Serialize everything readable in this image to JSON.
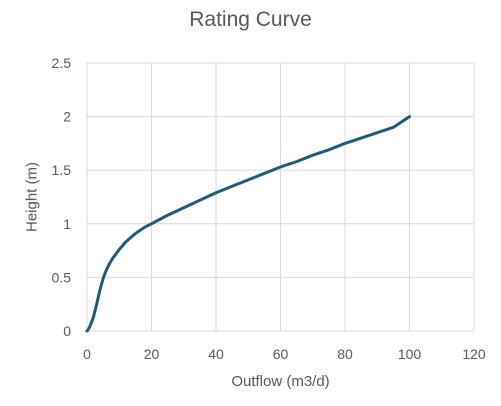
{
  "chart_data": {
    "type": "line",
    "title": "Rating Curve",
    "xlabel": "Outflow (m3/d)",
    "ylabel": "Height (m)",
    "xlim": [
      0,
      120
    ],
    "ylim": [
      0,
      2.5
    ],
    "x_ticks": [
      "0",
      "20",
      "40",
      "60",
      "80",
      "100",
      "120"
    ],
    "y_ticks": [
      "0",
      "0.5",
      "1",
      "1.5",
      "2",
      "2.5"
    ],
    "grid": true,
    "legend": "none",
    "series": [
      {
        "color": "#1F5C7A",
        "x": [
          0,
          0.5,
          1,
          2,
          3,
          4,
          5,
          6,
          7,
          8,
          10,
          12,
          15,
          18,
          20,
          25,
          30,
          35,
          40,
          45,
          50,
          55,
          60,
          65,
          70,
          75,
          80,
          85,
          90,
          95,
          100
        ],
        "y": [
          0,
          0.02,
          0.05,
          0.13,
          0.25,
          0.38,
          0.49,
          0.57,
          0.63,
          0.68,
          0.76,
          0.83,
          0.91,
          0.97,
          1.0,
          1.08,
          1.15,
          1.22,
          1.29,
          1.35,
          1.41,
          1.47,
          1.53,
          1.58,
          1.64,
          1.69,
          1.75,
          1.8,
          1.85,
          1.9,
          2.0
        ]
      }
    ]
  }
}
